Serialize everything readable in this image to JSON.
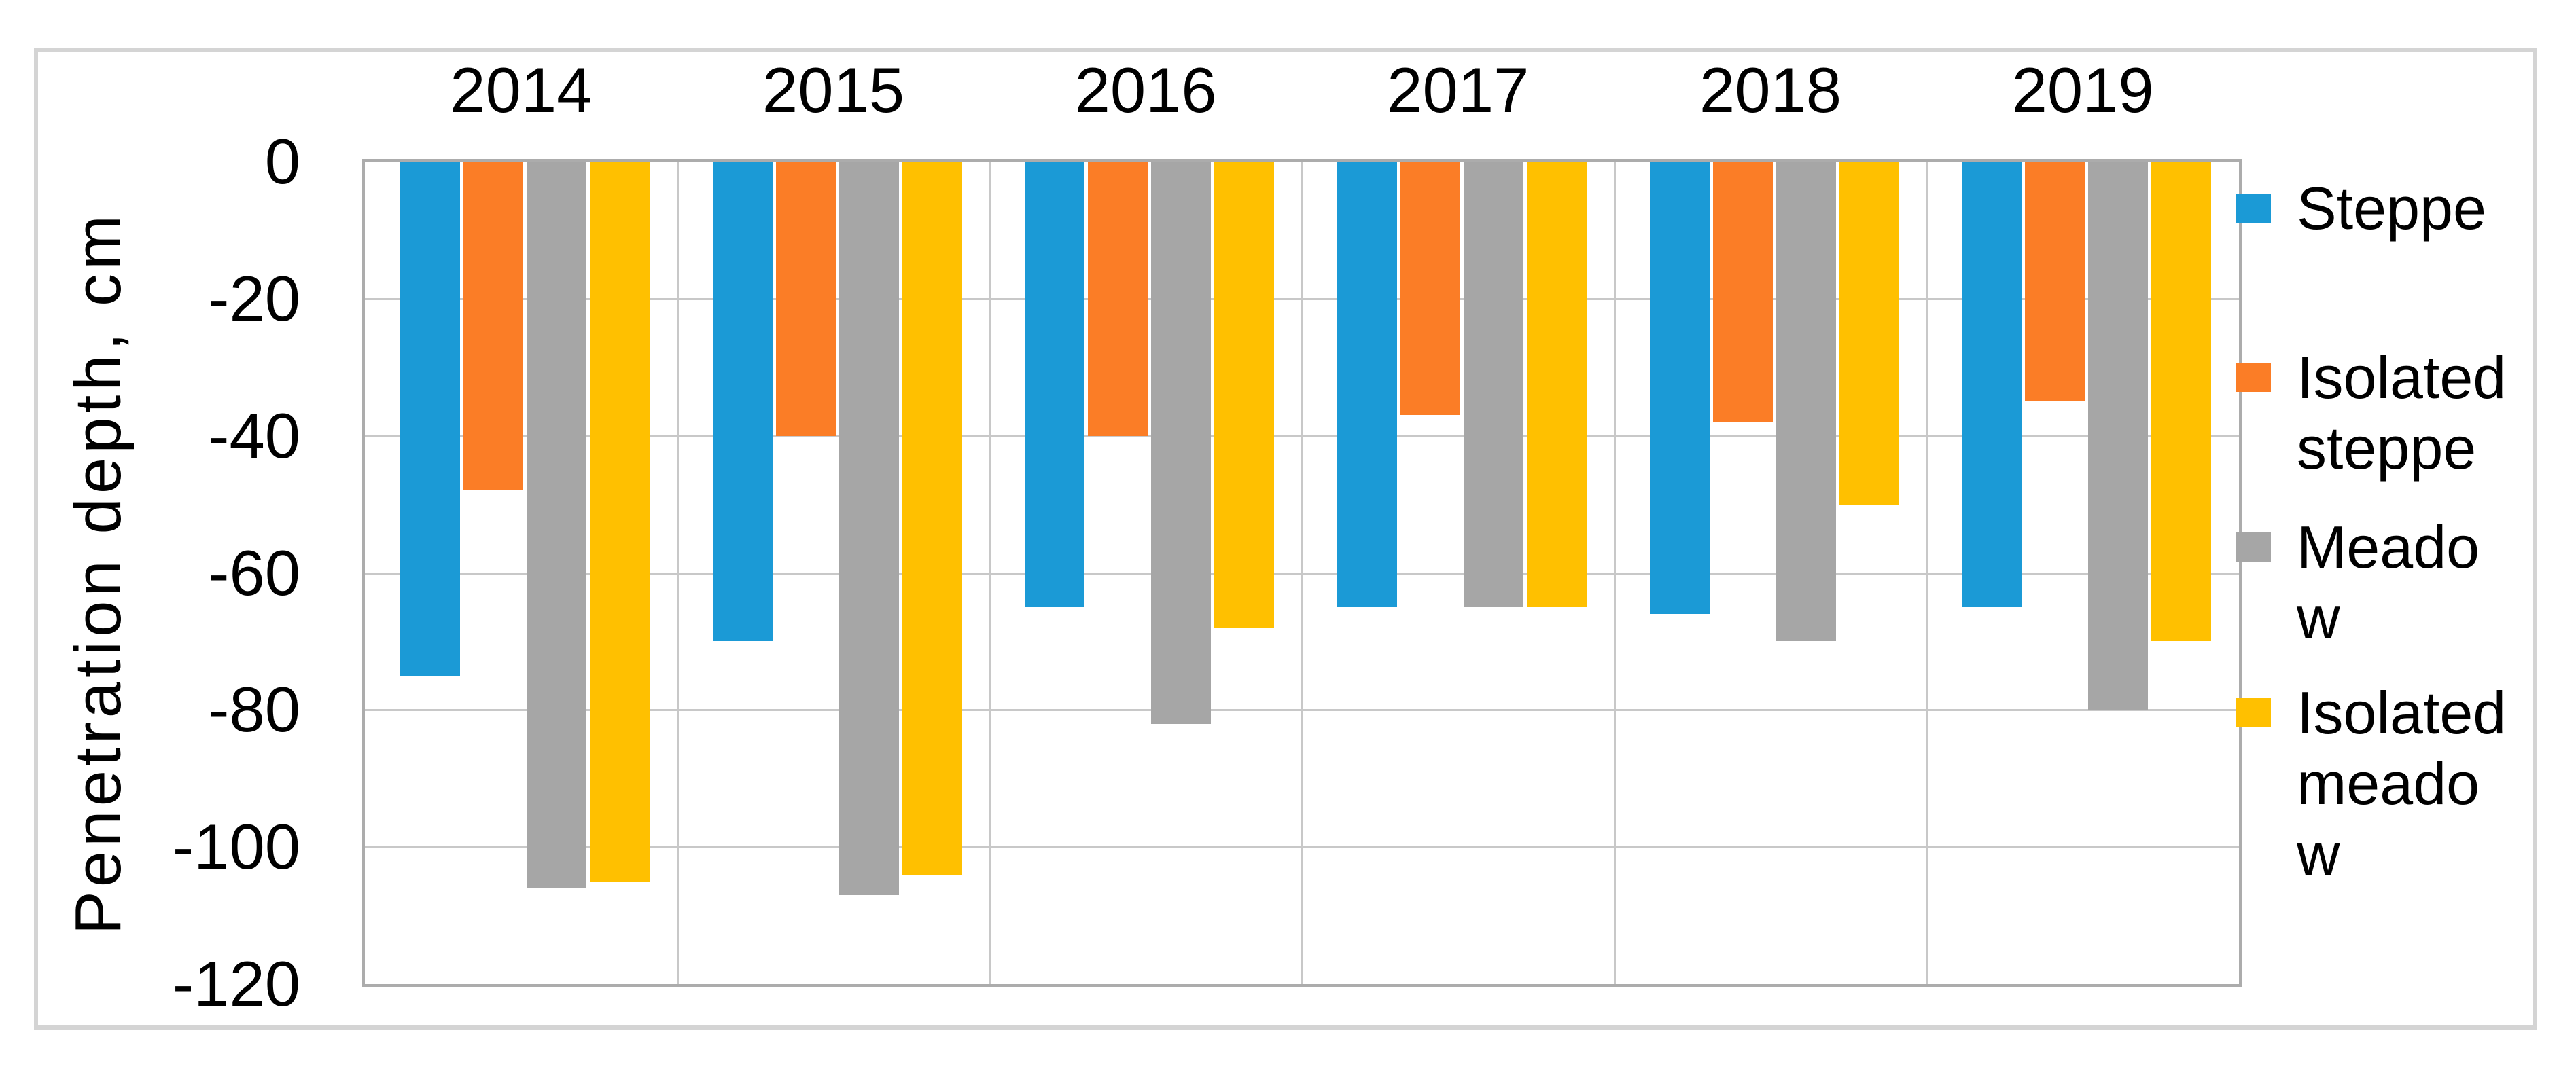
{
  "chart_data": {
    "type": "bar",
    "title": "",
    "ylabel": "Penetration depth, cm",
    "xlabel": "",
    "categories": [
      "2014",
      "2015",
      "2016",
      "2017",
      "2018",
      "2019"
    ],
    "series": [
      {
        "name": "Steppe",
        "color": "#1b9ad6",
        "values": [
          -75,
          -70,
          -65,
          -65,
          -66,
          -65
        ]
      },
      {
        "name": "Isolated steppe",
        "color": "#fb7d26",
        "values": [
          -48,
          -40,
          -40,
          -37,
          -38,
          -35
        ]
      },
      {
        "name": "Meadow",
        "color": "#a6a6a6",
        "values": [
          -106,
          -107,
          -82,
          -65,
          -70,
          -80
        ]
      },
      {
        "name": "Isolated meadow",
        "color": "#ffc000",
        "values": [
          -105,
          -104,
          -68,
          -65,
          -50,
          -70
        ]
      }
    ],
    "ylim": [
      -120,
      0
    ],
    "yticks": [
      0,
      -20,
      -40,
      -60,
      -80,
      -100,
      -120
    ],
    "grid": true,
    "grid_color": "#c8c8c8",
    "plot_border_color": "#acacac",
    "legend_position": "right",
    "category_labels_position": "top"
  }
}
